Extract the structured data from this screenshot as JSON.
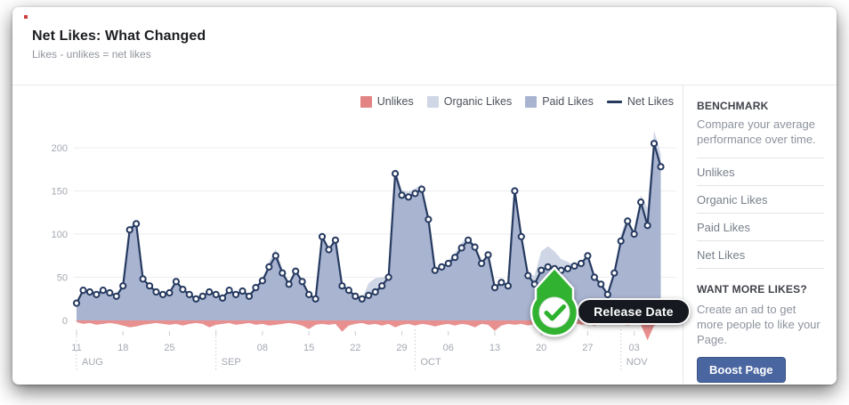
{
  "header": {
    "title": "Net Likes: What Changed",
    "subtitle": "Likes - unlikes = net likes"
  },
  "legend": [
    {
      "label": "Unlikes",
      "color": "#e28484",
      "swatch": "square"
    },
    {
      "label": "Organic Likes",
      "color": "#cfd6e5",
      "swatch": "square"
    },
    {
      "label": "Paid Likes",
      "color": "#a9b4d1",
      "swatch": "square"
    },
    {
      "label": "Net Likes",
      "color": "#263a60",
      "swatch": "line"
    }
  ],
  "annotation": {
    "label": "Release Date",
    "checkmark_icon": "check-in-circle",
    "pin_color": "#31b331"
  },
  "benchmark": {
    "title": "BENCHMARK",
    "description": "Compare your average performance over time.",
    "items": [
      "Unlikes",
      "Organic Likes",
      "Paid Likes",
      "Net Likes"
    ]
  },
  "promo": {
    "title": "WANT MORE LIKES?",
    "description": "Create an ad to get more people to like your Page.",
    "button_label": "Boost Page"
  },
  "chart_data": {
    "type": "area",
    "title": "Net Likes: What Changed",
    "ylabel": "",
    "xlabel": "",
    "ylim": [
      -30,
      220
    ],
    "yticks": [
      0,
      50,
      100,
      150,
      200
    ],
    "grid": true,
    "legend_position": "top-right",
    "x_unit": "day",
    "x_ticks": [
      {
        "i": 0,
        "label": "11"
      },
      {
        "i": 7,
        "label": "18"
      },
      {
        "i": 14,
        "label": "25"
      },
      {
        "i": 21,
        "label": ""
      },
      {
        "i": 28,
        "label": "08"
      },
      {
        "i": 35,
        "label": "15"
      },
      {
        "i": 42,
        "label": "22"
      },
      {
        "i": 49,
        "label": "29"
      },
      {
        "i": 56,
        "label": "06"
      },
      {
        "i": 63,
        "label": "13"
      },
      {
        "i": 70,
        "label": "20"
      },
      {
        "i": 77,
        "label": "27"
      },
      {
        "i": 84,
        "label": "03"
      }
    ],
    "months": [
      {
        "i": 0,
        "label": "AUG"
      },
      {
        "i": 21,
        "label": "SEP"
      },
      {
        "i": 51,
        "label": "OCT"
      },
      {
        "i": 82,
        "label": "NOV"
      }
    ],
    "annotation": {
      "label": "Release Date",
      "day_index": 72
    },
    "series": [
      {
        "name": "Unlikes",
        "color": "#e8908f",
        "values": [
          -2,
          -4,
          -3,
          -5,
          -4,
          -3,
          -4,
          -6,
          -8,
          -7,
          -5,
          -4,
          -3,
          -4,
          -5,
          -4,
          -6,
          -4,
          -3,
          -4,
          -8,
          -5,
          -4,
          -3,
          -5,
          -4,
          -3,
          -5,
          -4,
          -6,
          -5,
          -4,
          -3,
          -4,
          -6,
          -10,
          -5,
          -4,
          -5,
          -4,
          -13,
          -6,
          -4,
          -3,
          -5,
          -4,
          -6,
          -4,
          -8,
          -5,
          -4,
          -6,
          -4,
          -5,
          -7,
          -5,
          -4,
          -6,
          -4,
          -5,
          -8,
          -4,
          -5,
          -12,
          -6,
          -4,
          -5,
          -4,
          -6,
          -4,
          -5,
          -4,
          -6,
          -5,
          -4,
          -3,
          -5,
          -4,
          -6,
          -4,
          -3,
          -5,
          -4,
          -6,
          -4,
          -5,
          -23,
          -6,
          -4
        ]
      },
      {
        "name": "Organic Likes",
        "color": "#cfd6e5",
        "values": [
          20,
          35,
          33,
          30,
          35,
          32,
          28,
          40,
          109,
          115,
          50,
          40,
          33,
          30,
          32,
          45,
          36,
          30,
          25,
          28,
          33,
          30,
          26,
          35,
          30,
          34,
          28,
          38,
          46,
          68,
          83,
          60,
          42,
          57,
          45,
          30,
          25,
          100,
          84,
          95,
          40,
          35,
          28,
          25,
          43,
          49,
          50,
          52,
          176,
          151,
          149,
          153,
          158,
          119,
          58,
          62,
          70,
          78,
          90,
          97,
          87,
          66,
          76,
          38,
          44,
          40,
          155,
          99,
          52,
          52,
          80,
          86,
          80,
          71,
          68,
          63,
          66,
          75,
          50,
          42,
          30,
          55,
          100,
          121,
          100,
          145,
          130,
          220,
          193
        ]
      },
      {
        "name": "Paid Likes",
        "color": "#a9b4d1",
        "values": [
          20,
          35,
          33,
          30,
          35,
          32,
          28,
          40,
          105,
          112,
          48,
          40,
          33,
          30,
          32,
          45,
          36,
          30,
          25,
          28,
          33,
          30,
          26,
          35,
          30,
          34,
          28,
          38,
          46,
          62,
          75,
          55,
          42,
          57,
          45,
          30,
          25,
          97,
          82,
          93,
          40,
          35,
          28,
          25,
          29,
          33,
          40,
          50,
          170,
          145,
          143,
          147,
          152,
          117,
          58,
          62,
          66,
          73,
          84,
          93,
          85,
          66,
          76,
          38,
          44,
          40,
          150,
          97,
          52,
          42,
          58,
          62,
          60,
          58,
          60,
          63,
          66,
          75,
          50,
          42,
          30,
          55,
          92,
          115,
          100,
          137,
          110,
          205,
          178
        ]
      },
      {
        "name": "Net Likes",
        "color": "#263a60",
        "values": [
          20,
          35,
          33,
          30,
          35,
          32,
          28,
          40,
          105,
          112,
          48,
          40,
          33,
          30,
          32,
          45,
          36,
          30,
          25,
          28,
          33,
          30,
          26,
          35,
          30,
          34,
          28,
          38,
          46,
          62,
          75,
          55,
          42,
          57,
          45,
          30,
          25,
          97,
          82,
          93,
          40,
          35,
          28,
          25,
          29,
          33,
          40,
          50,
          170,
          145,
          143,
          147,
          152,
          117,
          58,
          62,
          66,
          73,
          84,
          93,
          85,
          66,
          76,
          38,
          44,
          40,
          150,
          97,
          52,
          42,
          58,
          62,
          60,
          58,
          60,
          63,
          66,
          75,
          50,
          42,
          30,
          55,
          92,
          115,
          100,
          137,
          110,
          205,
          178
        ]
      }
    ]
  }
}
